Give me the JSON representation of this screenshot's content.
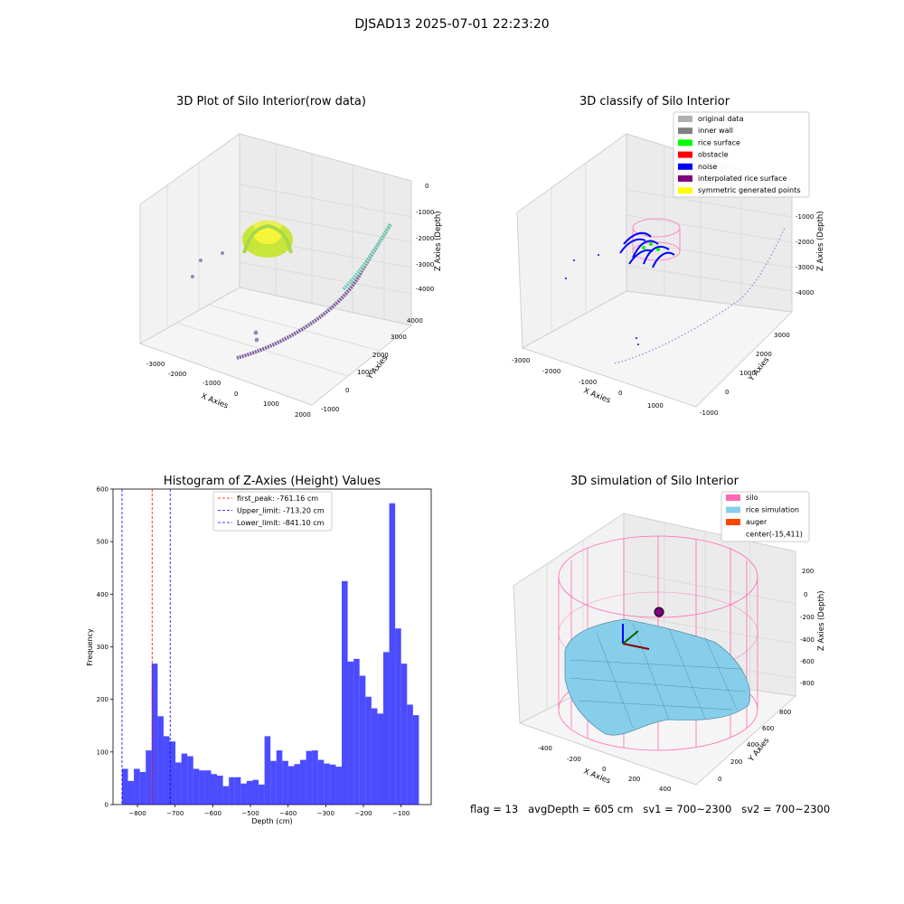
{
  "figure_title": "DJSAD13 2025-07-01 22:23:20",
  "footer_text": "flag = 13   avgDepth = 605 cm   sv1 = 700~2300   sv2 = 700~2300",
  "chart_data": [
    {
      "type": "scatter",
      "projection": "3d",
      "title": "3D Plot of Silo Interior(row data)",
      "xlabel": "X Axies",
      "ylabel": "Y Axies",
      "zlabel": "Z Axies (Depth)",
      "xticks": [
        "-3000",
        "-2000",
        "-1000",
        "0",
        "1000",
        "2000"
      ],
      "yticks": [
        "-1000",
        "0",
        "1000",
        "2000",
        "3000",
        "4000"
      ],
      "zticks": [
        "0",
        "-1000",
        "-2000",
        "-3000",
        "-4000"
      ],
      "grid": true
    },
    {
      "type": "scatter",
      "projection": "3d",
      "title": "3D classify of Silo Interior",
      "xlabel": "X Axies",
      "ylabel": "Y Axies",
      "zlabel": "Z Axies (Depth)",
      "xticks": [
        "-3000",
        "-2000",
        "-1000",
        "0",
        "1000"
      ],
      "yticks": [
        "-1000",
        "0",
        "1000",
        "2000",
        "3000"
      ],
      "zticks": [
        "0",
        "-1000",
        "-2000",
        "-3000",
        "-4000"
      ],
      "legend_position": "top-right",
      "legend": [
        {
          "label": "original data",
          "color": "#b0b0b0"
        },
        {
          "label": "inner wall",
          "color": "#808080"
        },
        {
          "label": "rice surface",
          "color": "#00ff00"
        },
        {
          "label": "obstacle",
          "color": "#ff0000"
        },
        {
          "label": "noise",
          "color": "#0000ff"
        },
        {
          "label": "interpolated rice surface",
          "color": "#800080"
        },
        {
          "label": "symmetric generated points",
          "color": "#ffff00"
        }
      ],
      "grid": true
    },
    {
      "type": "bar",
      "title": "Histogram of Z-Axies (Height) Values",
      "xlabel": "Depth (cm)",
      "ylabel": "Frequency",
      "xlim": [
        -865,
        -20
      ],
      "ylim": [
        0,
        600
      ],
      "xticks": [
        -800,
        -700,
        -600,
        -500,
        -400,
        -300,
        -200,
        -100
      ],
      "xtick_labels": [
        "−800",
        "−700",
        "−600",
        "−500",
        "−400",
        "−300",
        "−200",
        "−100"
      ],
      "yticks": [
        0,
        100,
        200,
        300,
        400,
        500,
        600
      ],
      "bin_start": -841.1,
      "bin_width": 15.77,
      "bar_color": "#0000ff",
      "values": [
        68,
        45,
        68,
        62,
        103,
        268,
        168,
        130,
        120,
        80,
        97,
        92,
        68,
        65,
        65,
        58,
        55,
        35,
        52,
        52,
        40,
        45,
        47,
        38,
        130,
        83,
        103,
        83,
        73,
        77,
        85,
        102,
        103,
        85,
        78,
        76,
        72,
        425,
        272,
        277,
        245,
        205,
        183,
        173,
        290,
        573,
        335,
        268,
        190,
        170
      ],
      "vlines": [
        {
          "label": "first_peak: -761.16 cm",
          "x": -761.16,
          "color": "#ff0000"
        },
        {
          "label": "Upper_limit: -713.20 cm",
          "x": -713.2,
          "color": "#0000ff"
        },
        {
          "label": "Lower_limit: -841.10 cm",
          "x": -841.1,
          "color": "#0000ff"
        }
      ],
      "legend_position": "top-center"
    },
    {
      "type": "surface",
      "projection": "3d",
      "title": "3D simulation of Silo Interior",
      "xlabel": "X Axies",
      "ylabel": "Y Axies",
      "zlabel": "Z Axies (Depth)",
      "xticks": [
        "-400",
        "-200",
        "0",
        "200",
        "400"
      ],
      "yticks": [
        "0",
        "200",
        "400",
        "600",
        "800"
      ],
      "zticks": [
        "200",
        "0",
        "-200",
        "-400",
        "-600",
        "-800"
      ],
      "legend_position": "top-right",
      "legend": [
        {
          "label": "silo",
          "color": "#ff69b4"
        },
        {
          "label": "rice simulation",
          "color": "#87ceeb"
        },
        {
          "label": "auger",
          "color": "#ff4500"
        },
        {
          "label": "center(-15,411)",
          "color": "#ffffff"
        }
      ],
      "grid": true
    }
  ]
}
